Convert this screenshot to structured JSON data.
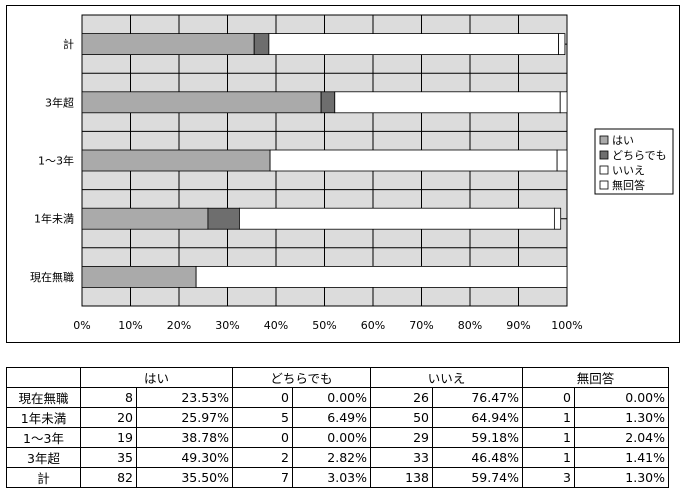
{
  "chart_data": {
    "type": "bar",
    "orientation": "horizontal",
    "stacked": true,
    "normalized_percent": true,
    "categories": [
      "計",
      "3年超",
      "1～3年",
      "1年未満",
      "現在無職"
    ],
    "series": [
      {
        "name": "はい",
        "values": [
          35.5,
          49.3,
          38.78,
          25.97,
          23.53
        ],
        "color": "#aaaaaa"
      },
      {
        "name": "どちらでも",
        "values": [
          3.03,
          2.82,
          0.0,
          6.49,
          0.0
        ],
        "color": "#6e6e6e"
      },
      {
        "name": "いいえ",
        "values": [
          59.74,
          46.48,
          59.18,
          64.94,
          76.47
        ],
        "color": "#ffffff"
      },
      {
        "name": "無回答",
        "values": [
          1.3,
          1.41,
          2.04,
          1.3,
          0.0
        ],
        "color": "#ffffff"
      }
    ],
    "xticks": [
      "0%",
      "10%",
      "20%",
      "30%",
      "40%",
      "50%",
      "60%",
      "70%",
      "80%",
      "90%",
      "100%"
    ],
    "xlim": [
      0,
      100
    ],
    "grid": true,
    "plot_background": "#dcdcdc",
    "legend": "right"
  },
  "table": {
    "headers": [
      "はい",
      "どちらでも",
      "いいえ",
      "無回答"
    ],
    "rows": [
      {
        "label": "現在無職",
        "cells": [
          "8",
          "23.53%",
          "0",
          "0.00%",
          "26",
          "76.47%",
          "0",
          "0.00%"
        ]
      },
      {
        "label": "1年未満",
        "cells": [
          "20",
          "25.97%",
          "5",
          "6.49%",
          "50",
          "64.94%",
          "1",
          "1.30%"
        ]
      },
      {
        "label": "1～3年",
        "cells": [
          "19",
          "38.78%",
          "0",
          "0.00%",
          "29",
          "59.18%",
          "1",
          "2.04%"
        ]
      },
      {
        "label": "3年超",
        "cells": [
          "35",
          "49.30%",
          "2",
          "2.82%",
          "33",
          "46.48%",
          "1",
          "1.41%"
        ]
      },
      {
        "label": "計",
        "cells": [
          "82",
          "35.50%",
          "7",
          "3.03%",
          "138",
          "59.74%",
          "3",
          "1.30%"
        ]
      }
    ]
  }
}
